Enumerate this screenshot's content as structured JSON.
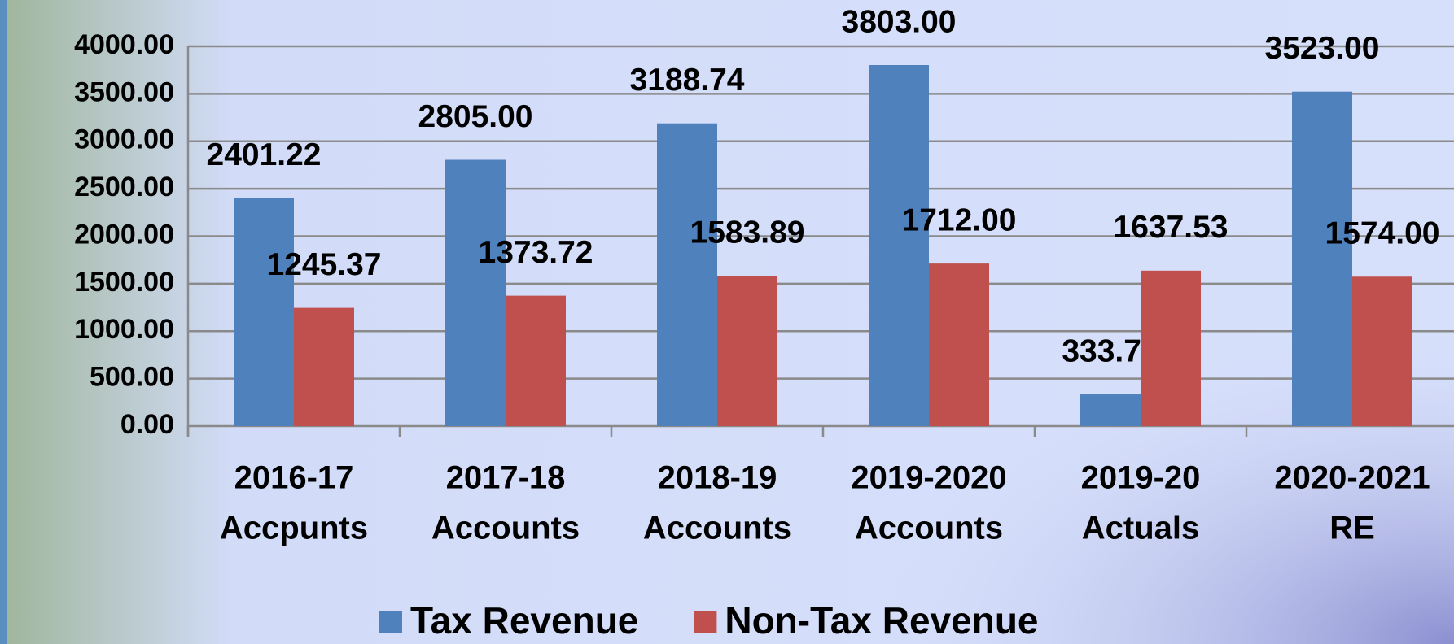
{
  "chart_data": {
    "type": "bar",
    "categories": [
      [
        "2016-17",
        "Accpunts"
      ],
      [
        "2017-18",
        "Accounts"
      ],
      [
        "2018-19",
        "Accounts"
      ],
      [
        "2019-2020",
        "Accounts"
      ],
      [
        "2019-20",
        "Actuals"
      ],
      [
        "2020-2021",
        "RE"
      ]
    ],
    "series": [
      {
        "name": "Tax Revenue",
        "color": "#4f81bd",
        "values": [
          2401.22,
          2805,
          3188.74,
          3803,
          333.78,
          3523
        ],
        "value_labels": [
          "2401.22",
          "2805.00",
          "3188.74",
          "3803.00",
          "333.78",
          "3523.00"
        ]
      },
      {
        "name": "Non-Tax Revenue",
        "color": "#c0504d",
        "values": [
          1245.37,
          1373.72,
          1583.89,
          1712,
          1637.53,
          1574
        ],
        "value_labels": [
          "1245.37",
          "1373.72",
          "1583.89",
          "1712.00",
          "1637.53",
          "1574.00"
        ]
      }
    ],
    "ylim": [
      0,
      4000
    ],
    "yticks": [
      {
        "value": 0,
        "label": "0.00"
      },
      {
        "value": 500,
        "label": "500.00"
      },
      {
        "value": 1000,
        "label": "1000.00"
      },
      {
        "value": 1500,
        "label": "1500.00"
      },
      {
        "value": 2000,
        "label": "2000.00"
      },
      {
        "value": 2500,
        "label": "2500.00"
      },
      {
        "value": 3000,
        "label": "3000.00"
      },
      {
        "value": 3500,
        "label": "3500.00"
      },
      {
        "value": 4000,
        "label": "4000.00"
      }
    ],
    "grid": true,
    "legend": "bottom"
  }
}
